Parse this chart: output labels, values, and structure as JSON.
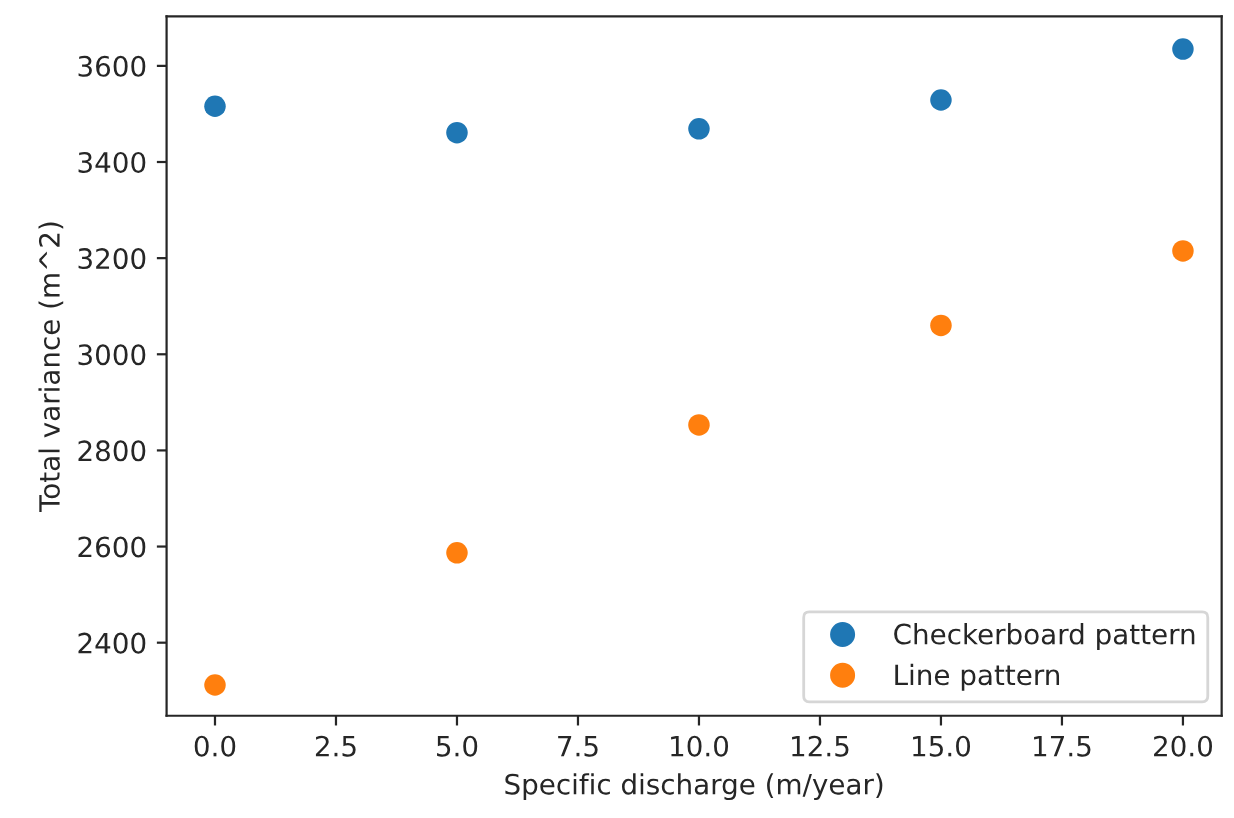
{
  "chart_data": {
    "type": "scatter",
    "xlabel": "Specific discharge (m/year)",
    "ylabel": "Total variance (m^2)",
    "x": [
      0,
      5,
      10,
      15,
      20
    ],
    "series": [
      {
        "name": "Checkerboard pattern",
        "color": "#1f77b4",
        "values": [
          3516,
          3461,
          3469,
          3529,
          3635
        ]
      },
      {
        "name": "Line pattern",
        "color": "#ff7f0e",
        "values": [
          2312,
          2587,
          2853,
          3060,
          3215
        ]
      }
    ],
    "xlim": [
      -1,
      20.8
    ],
    "ylim": [
      2248,
      3703
    ],
    "xticks": [
      {
        "value": 0,
        "label": "0.0"
      },
      {
        "value": 2.5,
        "label": "2.5"
      },
      {
        "value": 5,
        "label": "5.0"
      },
      {
        "value": 7.5,
        "label": "7.5"
      },
      {
        "value": 10,
        "label": "10.0"
      },
      {
        "value": 12.5,
        "label": "12.5"
      },
      {
        "value": 15,
        "label": "15.0"
      },
      {
        "value": 17.5,
        "label": "17.5"
      },
      {
        "value": 20,
        "label": "20.0"
      }
    ],
    "yticks": [
      2400,
      2600,
      2800,
      3000,
      3200,
      3400,
      3600
    ],
    "grid": false,
    "legend": "bottom right",
    "marker": "circle"
  }
}
